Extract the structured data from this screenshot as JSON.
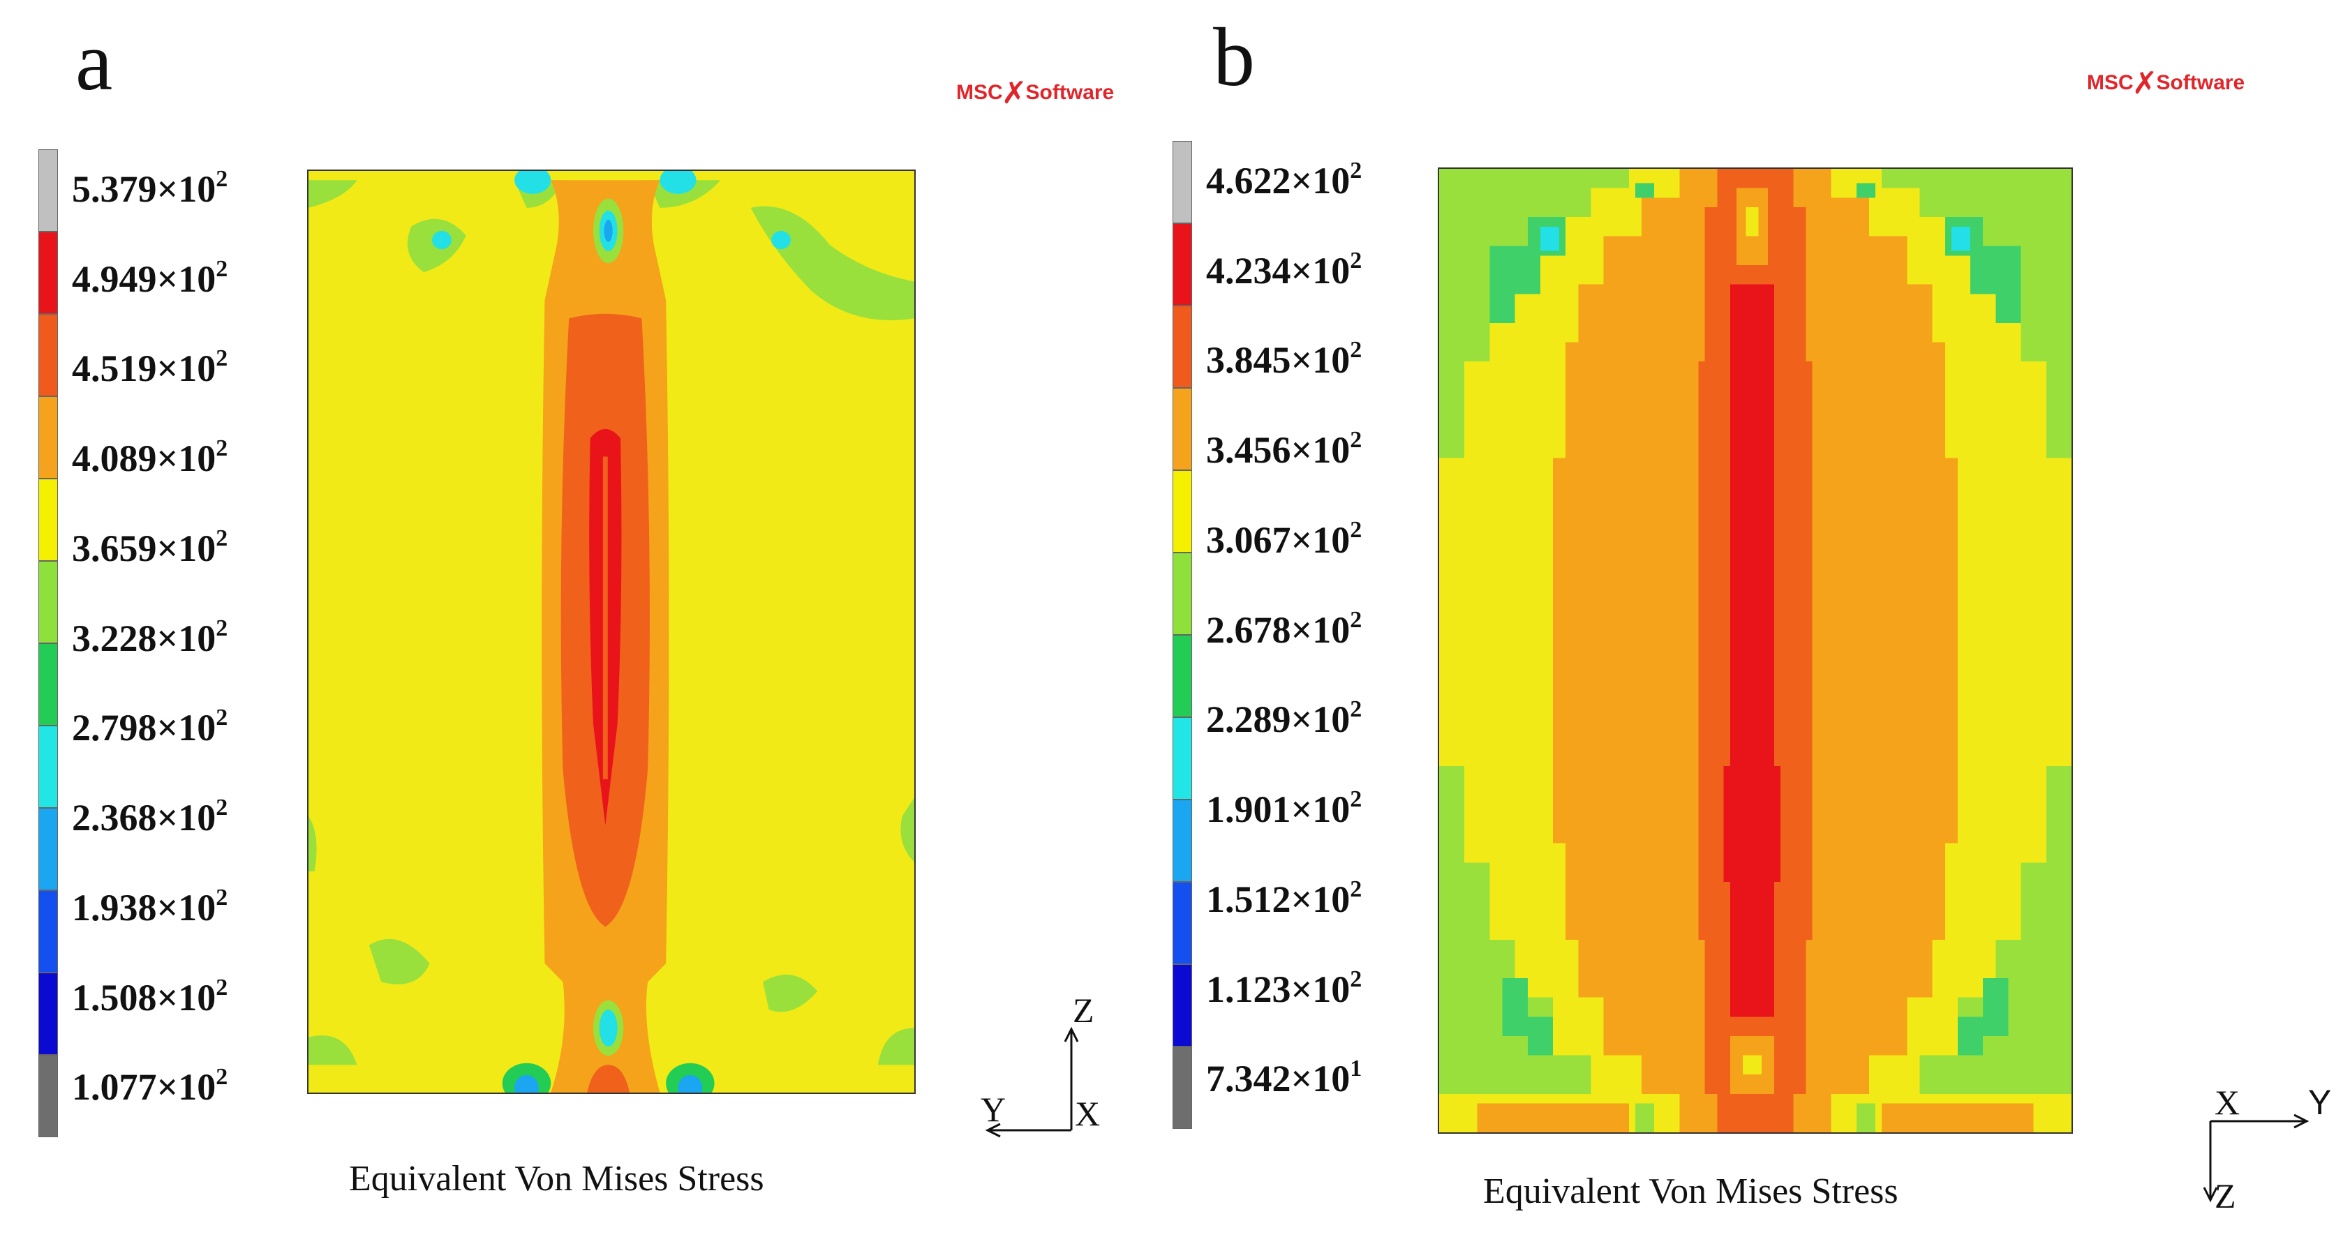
{
  "panel_a": {
    "letter": "a",
    "logo": {
      "left": "MSC",
      "mark": "✗",
      "right": "Software"
    },
    "legend_labels": [
      {
        "mantissa": "5.379×10",
        "exp": "2"
      },
      {
        "mantissa": "4.949×10",
        "exp": "2"
      },
      {
        "mantissa": "4.519×10",
        "exp": "2"
      },
      {
        "mantissa": "4.089×10",
        "exp": "2"
      },
      {
        "mantissa": "3.659×10",
        "exp": "2"
      },
      {
        "mantissa": "3.228×10",
        "exp": "2"
      },
      {
        "mantissa": "2.798×10",
        "exp": "2"
      },
      {
        "mantissa": "2.368×10",
        "exp": "2"
      },
      {
        "mantissa": "1.938×10",
        "exp": "2"
      },
      {
        "mantissa": "1.508×10",
        "exp": "2"
      },
      {
        "mantissa": "1.077×10",
        "exp": "2"
      }
    ],
    "caption": "Equivalent Von Mises Stress",
    "axes": {
      "up": "Z",
      "left": "Y",
      "center": "X"
    }
  },
  "panel_b": {
    "letter": "b",
    "logo": {
      "left": "MSC",
      "mark": "✗",
      "right": "Software"
    },
    "legend_labels": [
      {
        "mantissa": "4.622×10",
        "exp": "2"
      },
      {
        "mantissa": "4.234×10",
        "exp": "2"
      },
      {
        "mantissa": "3.845×10",
        "exp": "2"
      },
      {
        "mantissa": "3.456×10",
        "exp": "2"
      },
      {
        "mantissa": "3.067×10",
        "exp": "2"
      },
      {
        "mantissa": "2.678×10",
        "exp": "2"
      },
      {
        "mantissa": "2.289×10",
        "exp": "2"
      },
      {
        "mantissa": "1.901×10",
        "exp": "2"
      },
      {
        "mantissa": "1.512×10",
        "exp": "2"
      },
      {
        "mantissa": "1.123×10",
        "exp": "2"
      },
      {
        "mantissa": "7.342×10",
        "exp": "1"
      }
    ],
    "caption": "Equivalent Von Mises Stress",
    "axes": {
      "right": "Y",
      "center": "X",
      "down": "Z"
    }
  },
  "colors": {
    "scale": [
      "#c0c0c0",
      "#e8141a",
      "#f05a1c",
      "#f5a31c",
      "#f5f000",
      "#8ee03a",
      "#22cc55",
      "#22e6e6",
      "#1aa6f0",
      "#1450f0",
      "#0a0ad2",
      "#6e6e6e"
    ],
    "field_yellow": "#f2ea17",
    "field_orange": "#f4a31b",
    "field_redorange": "#f0611c",
    "field_red": "#e8141a",
    "field_green": "#9ae03c",
    "field_green2": "#3fd06a",
    "field_cyan": "#22e0e6",
    "field_blue": "#1aa6f0"
  }
}
